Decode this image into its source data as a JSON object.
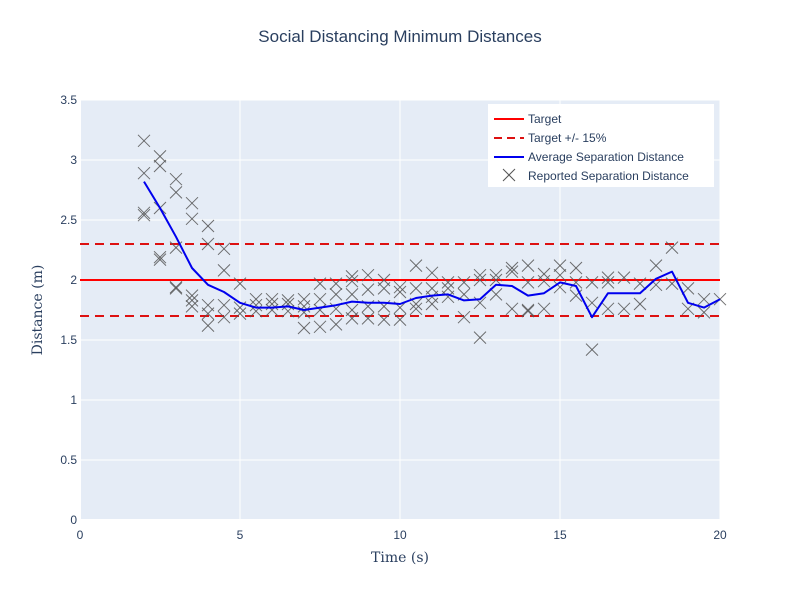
{
  "chart_data": {
    "type": "line",
    "title": "Social Distancing Minimum Distances",
    "xlabel": "Time (s)",
    "ylabel": "Distance (m)",
    "xlim": [
      0,
      20
    ],
    "ylim": [
      0,
      3.5
    ],
    "x_ticks": [
      "0",
      "5",
      "10",
      "15",
      "20"
    ],
    "y_ticks": [
      "0",
      "0.5",
      "1",
      "1.5",
      "2",
      "2.5",
      "3",
      "3.5"
    ],
    "grid": true,
    "legend_position": "top-right",
    "colors": {
      "target": "#ff0000",
      "band": "#dd1111",
      "average": "#0000ee",
      "reported": "#555555",
      "plot_bg": "#e5ecf6"
    },
    "series": [
      {
        "name": "Target",
        "style": "solid",
        "y_constant": 2.0
      },
      {
        "name": "Target +/- 15%",
        "style": "dashed",
        "y_constants": [
          2.3,
          1.7
        ]
      },
      {
        "name": "Average Separation Distance",
        "style": "line",
        "x": [
          2,
          2.5,
          3,
          3.5,
          4,
          4.5,
          5,
          5.5,
          6,
          6.5,
          7,
          7.5,
          8,
          8.5,
          9,
          9.5,
          10,
          10.5,
          11,
          11.5,
          12,
          12.5,
          13,
          13.5,
          14,
          14.5,
          15,
          15.5,
          16,
          16.5,
          17,
          17.5,
          18,
          18.5,
          19,
          19.5,
          20
        ],
        "y": [
          2.82,
          2.6,
          2.36,
          2.1,
          1.96,
          1.9,
          1.81,
          1.77,
          1.77,
          1.78,
          1.75,
          1.77,
          1.79,
          1.82,
          1.81,
          1.81,
          1.8,
          1.85,
          1.87,
          1.88,
          1.83,
          1.84,
          1.96,
          1.95,
          1.87,
          1.89,
          1.98,
          1.95,
          1.69,
          1.89,
          1.89,
          1.89,
          2.01,
          2.07,
          1.81,
          1.77,
          1.84
        ]
      },
      {
        "name": "Reported Separation Distance",
        "style": "markers-x",
        "points": [
          [
            2,
            3.16
          ],
          [
            2,
            2.89
          ],
          [
            2,
            2.56
          ],
          [
            2,
            2.54
          ],
          [
            2.5,
            3.03
          ],
          [
            2.5,
            2.95
          ],
          [
            2.5,
            2.6
          ],
          [
            2.5,
            2.19
          ],
          [
            2.5,
            2.17
          ],
          [
            3,
            2.84
          ],
          [
            3,
            2.73
          ],
          [
            3,
            2.27
          ],
          [
            3,
            1.94
          ],
          [
            3,
            1.93
          ],
          [
            3.5,
            2.64
          ],
          [
            3.5,
            2.51
          ],
          [
            3.5,
            1.87
          ],
          [
            3.5,
            1.83
          ],
          [
            3.5,
            1.78
          ],
          [
            4,
            2.45
          ],
          [
            4,
            2.3
          ],
          [
            4,
            1.79
          ],
          [
            4,
            1.72
          ],
          [
            4,
            1.62
          ],
          [
            4.5,
            2.26
          ],
          [
            4.5,
            2.08
          ],
          [
            4.5,
            1.79
          ],
          [
            4.5,
            1.69
          ],
          [
            5,
            1.97
          ],
          [
            5,
            1.77
          ],
          [
            5,
            1.72
          ],
          [
            5.5,
            1.84
          ],
          [
            5.5,
            1.79
          ],
          [
            5.5,
            1.74
          ],
          [
            6,
            1.84
          ],
          [
            6,
            1.8
          ],
          [
            6,
            1.75
          ],
          [
            6.5,
            1.83
          ],
          [
            6.5,
            1.8
          ],
          [
            6.5,
            1.74
          ],
          [
            7,
            1.84
          ],
          [
            7,
            1.78
          ],
          [
            7,
            1.73
          ],
          [
            7,
            1.6
          ],
          [
            7.5,
            1.97
          ],
          [
            7.5,
            1.84
          ],
          [
            7.5,
            1.75
          ],
          [
            7.5,
            1.61
          ],
          [
            8,
            1.97
          ],
          [
            8,
            1.88
          ],
          [
            8,
            1.76
          ],
          [
            8,
            1.63
          ],
          [
            8.5,
            2.03
          ],
          [
            8.5,
            1.99
          ],
          [
            8.5,
            1.88
          ],
          [
            8.5,
            1.75
          ],
          [
            8.5,
            1.68
          ],
          [
            9,
            2.04
          ],
          [
            9,
            1.92
          ],
          [
            9,
            1.78
          ],
          [
            9,
            1.68
          ],
          [
            9.5,
            2.0
          ],
          [
            9.5,
            1.93
          ],
          [
            9.5,
            1.78
          ],
          [
            9.5,
            1.67
          ],
          [
            10,
            1.94
          ],
          [
            10,
            1.9
          ],
          [
            10,
            1.77
          ],
          [
            10,
            1.67
          ],
          [
            10.5,
            2.12
          ],
          [
            10.5,
            1.93
          ],
          [
            10.5,
            1.8
          ],
          [
            10.5,
            1.76
          ],
          [
            11,
            2.06
          ],
          [
            11,
            1.93
          ],
          [
            11,
            1.86
          ],
          [
            11,
            1.8
          ],
          [
            11.5,
            1.98
          ],
          [
            11.5,
            1.93
          ],
          [
            11.5,
            1.86
          ],
          [
            12,
            1.98
          ],
          [
            12,
            1.88
          ],
          [
            12,
            1.69
          ],
          [
            12.5,
            2.04
          ],
          [
            12.5,
            2.0
          ],
          [
            12.5,
            1.81
          ],
          [
            12.5,
            1.52
          ],
          [
            13,
            2.04
          ],
          [
            13,
            2.0
          ],
          [
            13,
            1.88
          ],
          [
            13.5,
            2.1
          ],
          [
            13.5,
            2.07
          ],
          [
            13.5,
            1.76
          ],
          [
            14,
            2.12
          ],
          [
            14,
            1.98
          ],
          [
            14,
            1.75
          ],
          [
            14,
            1.74
          ],
          [
            14.5,
            2.05
          ],
          [
            14.5,
            1.99
          ],
          [
            14.5,
            1.76
          ],
          [
            15,
            2.12
          ],
          [
            15,
            2.04
          ],
          [
            15,
            1.94
          ],
          [
            15.5,
            2.1
          ],
          [
            15.5,
            1.98
          ],
          [
            15.5,
            1.87
          ],
          [
            16,
            1.98
          ],
          [
            16,
            1.81
          ],
          [
            16,
            1.42
          ],
          [
            16.5,
            2.02
          ],
          [
            16.5,
            1.98
          ],
          [
            16.5,
            1.76
          ],
          [
            17,
            2.02
          ],
          [
            17,
            1.76
          ],
          [
            17.5,
            1.97
          ],
          [
            17.5,
            1.8
          ],
          [
            18,
            2.12
          ],
          [
            18,
            1.96
          ],
          [
            18.5,
            2.27
          ],
          [
            18.5,
            1.97
          ],
          [
            19,
            1.93
          ],
          [
            19,
            1.76
          ],
          [
            19.5,
            1.84
          ],
          [
            19.5,
            1.73
          ],
          [
            20,
            1.84
          ]
        ]
      }
    ]
  }
}
